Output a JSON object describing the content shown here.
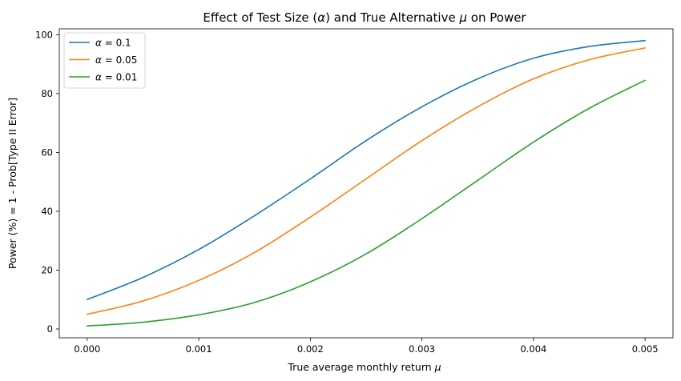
{
  "chart_data": {
    "type": "line",
    "title_prefix": "Effect of Test Size (",
    "title_alpha": "α",
    "title_middle": ") and True Alternative ",
    "title_mu": "μ",
    "title_suffix": " on Power",
    "xlabel_text": "True average monthly return ",
    "xlabel_mu": "μ",
    "ylabel": "Power (%) = 1 - Prob[Type II Error]",
    "xlim": [
      -0.00025,
      0.00525
    ],
    "ylim": [
      -3,
      102
    ],
    "xticks": [
      0.0,
      0.001,
      0.002,
      0.003,
      0.004,
      0.005
    ],
    "xtick_labels": [
      "0.000",
      "0.001",
      "0.002",
      "0.003",
      "0.004",
      "0.005"
    ],
    "yticks": [
      0,
      20,
      40,
      60,
      80,
      100
    ],
    "ytick_labels": [
      "0",
      "20",
      "40",
      "60",
      "80",
      "100"
    ],
    "grid": false,
    "legend_position": "top-left",
    "series": [
      {
        "name_symbol": "α",
        "name_value": " = 0.1",
        "color": "#1f77b4",
        "x": [
          0.0,
          0.0005,
          0.001,
          0.0015,
          0.002,
          0.0025,
          0.003,
          0.0035,
          0.004,
          0.0045,
          0.005
        ],
        "values": [
          10.0,
          17.5,
          27.0,
          38.5,
          51.0,
          64.0,
          75.5,
          85.0,
          92.0,
          96.0,
          98.0
        ]
      },
      {
        "name_symbol": "α",
        "name_value": " = 0.05",
        "color": "#ff7f0e",
        "x": [
          0.0,
          0.0005,
          0.001,
          0.0015,
          0.002,
          0.0025,
          0.003,
          0.0035,
          0.004,
          0.0045,
          0.005
        ],
        "values": [
          5.0,
          9.5,
          16.5,
          26.0,
          38.0,
          51.0,
          64.0,
          75.5,
          85.0,
          91.5,
          95.5
        ]
      },
      {
        "name_symbol": "α",
        "name_value": " = 0.01",
        "color": "#2ca02c",
        "x": [
          0.0,
          0.0005,
          0.001,
          0.0015,
          0.002,
          0.0025,
          0.003,
          0.0035,
          0.004,
          0.0045,
          0.005
        ],
        "values": [
          1.0,
          2.3,
          4.8,
          9.0,
          16.0,
          25.5,
          37.5,
          50.5,
          63.5,
          75.0,
          84.5
        ]
      }
    ]
  }
}
